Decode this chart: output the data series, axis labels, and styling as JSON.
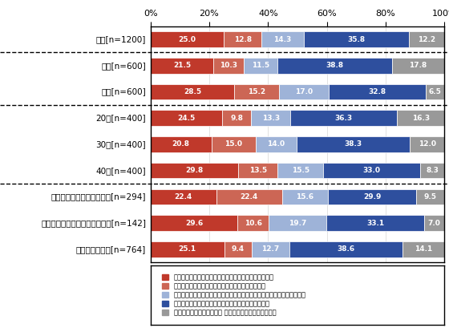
{
  "categories": [
    "全体[n=1200]",
    "男性[n=600]",
    "女性[n=600]",
    "20代[n=400]",
    "30代[n=400]",
    "40代[n=400]",
    "小学生以下の子どもがいる[n=294]",
    "中学生以上の子どもだけがいる[n=142]",
    "子どもはいない[n=764]"
  ],
  "data": [
    [
      25.0,
      12.8,
      14.3,
      35.8,
      12.2
    ],
    [
      21.5,
      10.3,
      11.5,
      38.8,
      17.8
    ],
    [
      28.5,
      15.2,
      17.0,
      32.8,
      6.5
    ],
    [
      24.5,
      9.8,
      13.3,
      36.3,
      16.3
    ],
    [
      20.8,
      15.0,
      14.0,
      38.3,
      12.0
    ],
    [
      29.8,
      13.5,
      15.5,
      33.0,
      8.3
    ],
    [
      22.4,
      22.4,
      15.6,
      29.9,
      9.5
    ],
    [
      29.6,
      10.6,
      19.7,
      33.1,
      7.0
    ],
    [
      25.1,
      9.4,
      12.7,
      38.6,
      14.1
    ]
  ],
  "colors": [
    "#c0392b",
    "#cc6655",
    "#9eb3d8",
    "#2e4f9e",
    "#999999"
  ],
  "legend_labels": [
    "東日本大震災以前から積極的に行い、現在も行っている",
    "東日本大震災後に積極的に行い、現在も行っている",
    "東日本大震災後しばらくは積極的には行ったが、今はあまり行っていない",
    "東日本大震災以前も震災後も積極的には行っていない",
    "自分の家の食生活について 把握していない・わからない"
  ],
  "dashed_after": [
    0,
    2,
    5
  ],
  "bar_height": 0.6,
  "xlabel_ticks": [
    0,
    20,
    40,
    60,
    80,
    100
  ],
  "xlabel_labels": [
    "0%",
    "20%",
    "40%",
    "60%",
    "80%",
    "100%"
  ],
  "label_fontsize": 7.5,
  "tick_fontsize": 8.0,
  "value_fontsize": 6.5,
  "legend_fontsize": 6.0
}
